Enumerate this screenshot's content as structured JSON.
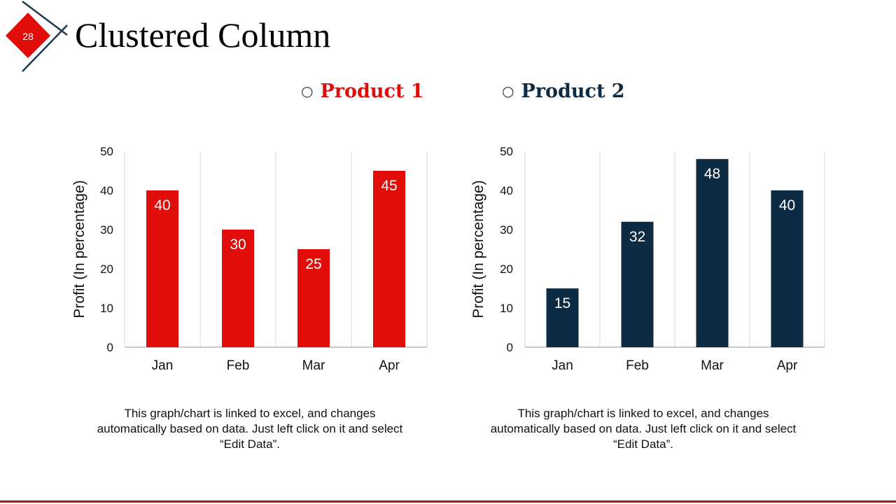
{
  "slide": {
    "number": "28",
    "title": "Clustered Column"
  },
  "colors": {
    "product1": "#e00d0a",
    "product2": "#0d2b42",
    "accent_line": "#a01b14",
    "grid": "#d9d9d9"
  },
  "legend": [
    {
      "label": "Product 1",
      "color": "#e00d0a"
    },
    {
      "label": "Product 2",
      "color": "#0d2b42"
    }
  ],
  "chart_data": [
    {
      "type": "bar",
      "series": [
        {
          "name": "Product 1",
          "values": [
            40,
            30,
            25,
            45
          ]
        }
      ],
      "categories": [
        "Jan",
        "Feb",
        "Mar",
        "Apr"
      ],
      "ylabel": "Profit  (In percentage)",
      "ylim": [
        0,
        50
      ],
      "yticks": [
        "0",
        "10",
        "20",
        "30",
        "40",
        "50"
      ],
      "data_labels": true,
      "grid": "vertical category separators"
    },
    {
      "type": "bar",
      "series": [
        {
          "name": "Product 2",
          "values": [
            15,
            32,
            48,
            40
          ]
        }
      ],
      "categories": [
        "Jan",
        "Feb",
        "Mar",
        "Apr"
      ],
      "ylabel": "Profit  (In percentage)",
      "ylim": [
        0,
        50
      ],
      "yticks": [
        "0",
        "10",
        "20",
        "30",
        "40",
        "50"
      ],
      "data_labels": true,
      "grid": "vertical category separators"
    }
  ],
  "notes": [
    {
      "line1": "This graph/chart is linked to excel, and changes",
      "line2": "automatically based on data.  Just left click on it and select",
      "line3": "“Edit Data”."
    },
    {
      "line1": "This graph/chart is linked to excel, and changes",
      "line2": "automatically based on data.  Just left click on it and select",
      "line3": "“Edit Data”."
    }
  ]
}
